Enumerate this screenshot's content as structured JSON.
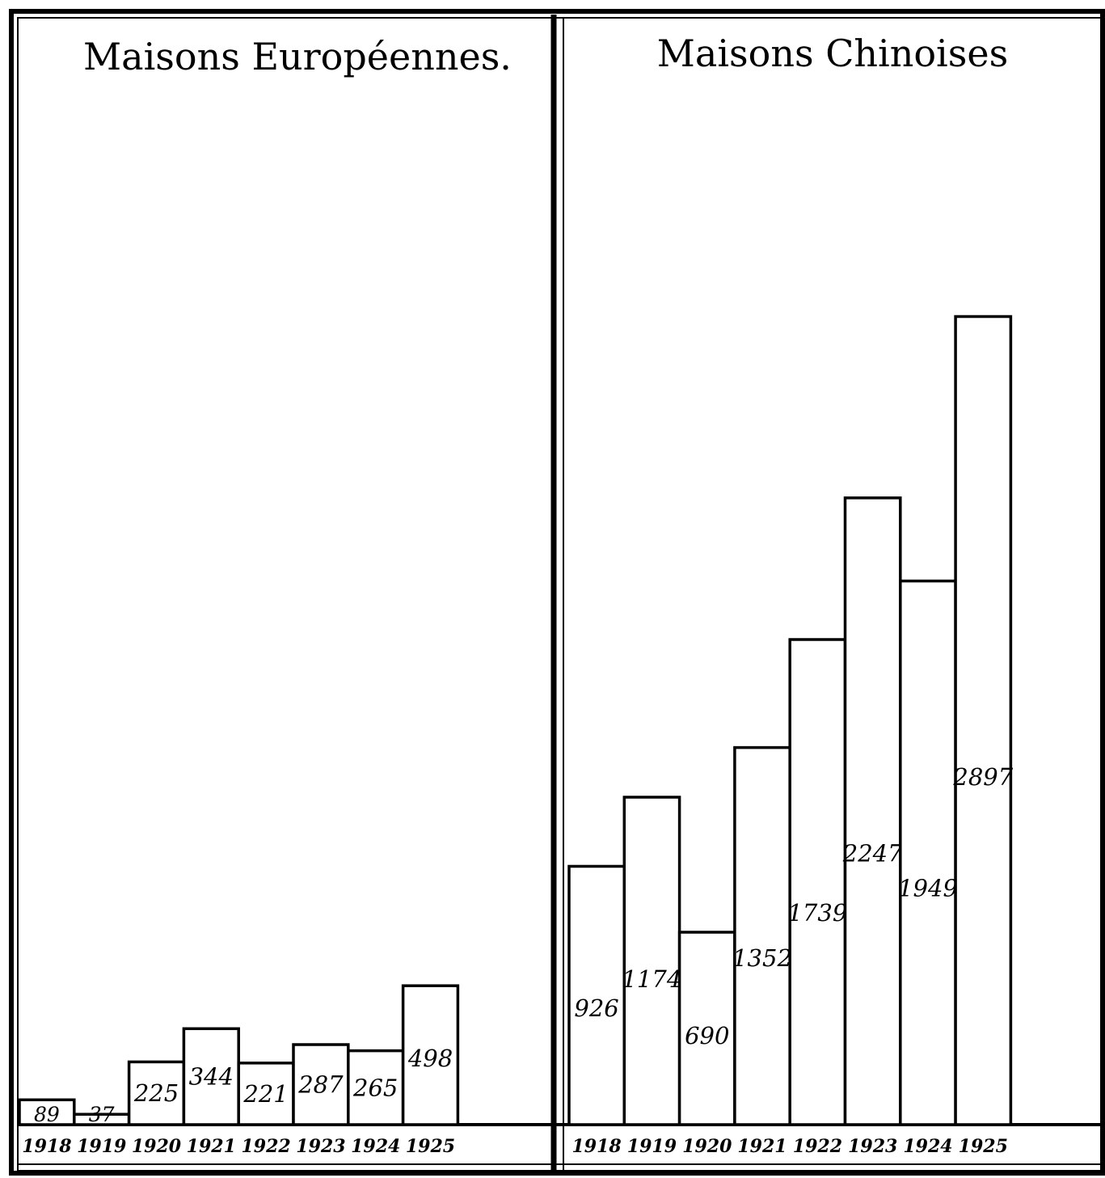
{
  "chart_data": [
    {
      "type": "bar",
      "title": "Maisons Européennes.",
      "categories": [
        "1918",
        "1919",
        "1920",
        "1921",
        "1922",
        "1923",
        "1924",
        "1925"
      ],
      "values": [
        89,
        37,
        225,
        344,
        221,
        287,
        265,
        498
      ],
      "value_labels": [
        "89",
        "37",
        "225",
        "344",
        "221",
        "287",
        "265",
        "498"
      ],
      "xlabel": "",
      "ylabel": "",
      "grid": false,
      "legend": "none"
    },
    {
      "type": "bar",
      "title": "Maisons Chinoises",
      "categories": [
        "1918",
        "1919",
        "1920",
        "1921",
        "1922",
        "1923",
        "1924",
        "1925"
      ],
      "values": [
        926,
        1174,
        690,
        1352,
        1739,
        2247,
        1949,
        2897
      ],
      "value_labels": [
        "926",
        "1174",
        "690",
        "1352",
        "1739",
        "2247",
        "1949",
        "2897"
      ],
      "xlabel": "",
      "ylabel": "",
      "grid": false,
      "legend": "none"
    }
  ],
  "colors": {
    "ink": "#000000",
    "paper": "#ffffff"
  }
}
